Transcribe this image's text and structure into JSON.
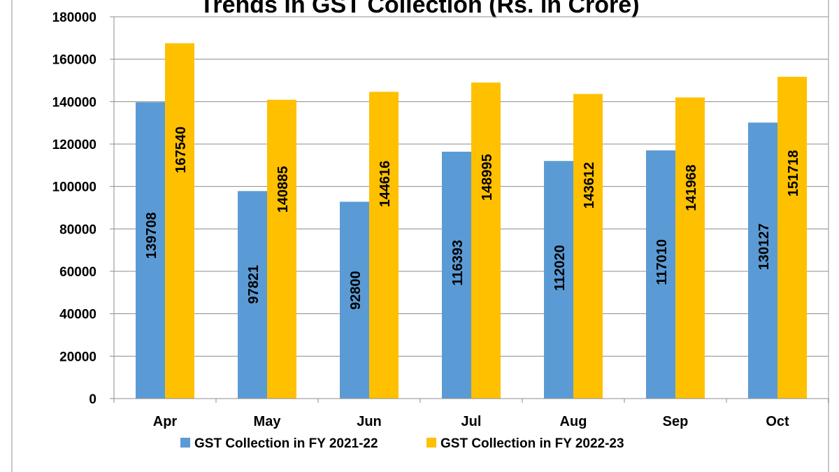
{
  "chart_data": {
    "type": "bar",
    "title": "Trends in GST Collection (Rs. in Crore)",
    "categories": [
      "Apr",
      "May",
      "Jun",
      "Jul",
      "Aug",
      "Sep",
      "Oct"
    ],
    "series": [
      {
        "name": "GST Collection in FY 2021-22",
        "color": "#5b9bd5",
        "values": [
          139708,
          97821,
          92800,
          116393,
          112020,
          117010,
          130127
        ]
      },
      {
        "name": "GST Collection in FY 2022-23",
        "color": "#ffc000",
        "values": [
          167540,
          140885,
          144616,
          148995,
          143612,
          141968,
          151718
        ]
      }
    ],
    "ylim": [
      0,
      180000
    ],
    "yticks": [
      0,
      20000,
      40000,
      60000,
      80000,
      100000,
      120000,
      140000,
      160000,
      180000
    ],
    "grid": true,
    "legend": "bottom",
    "data_labels": "inside-rotated"
  }
}
